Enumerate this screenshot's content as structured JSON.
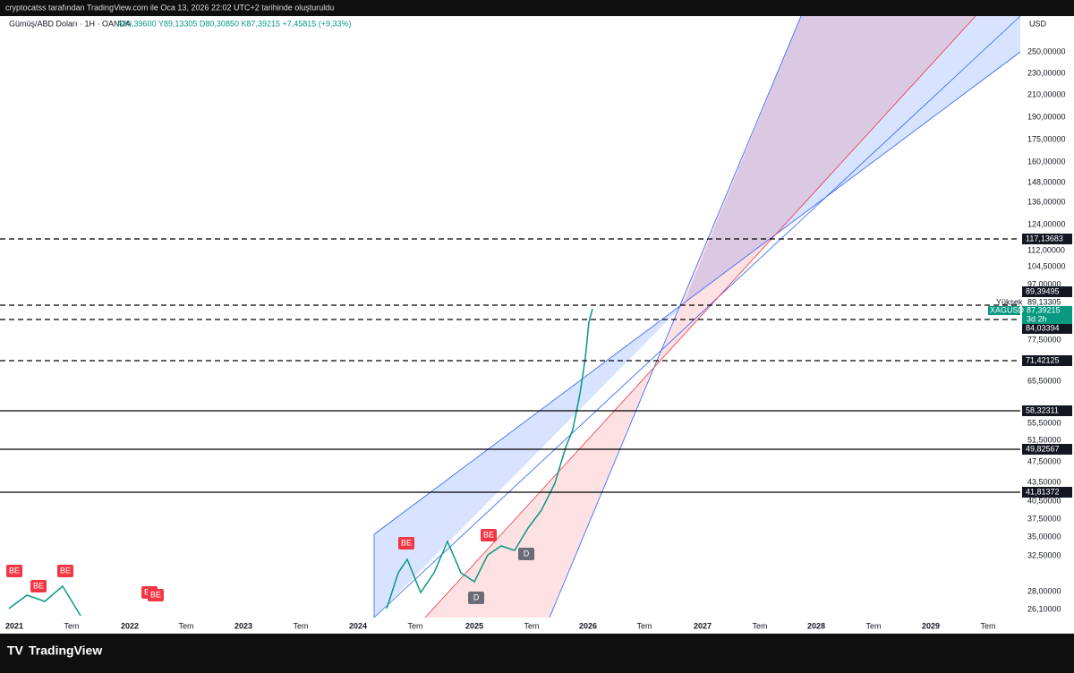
{
  "header": {
    "credit": "cryptocatss tarafından TradingView.com ile Oca 13, 2026 22:02 UTC+2 tarihinde oluşturuldu",
    "symbol": "Gümüş/ABD Doları · 1H · OANDA",
    "ohlc": "A80,39600 Y89,13305 D80,30850 K87,39215 +7,45815 (+9,33%)",
    "currency": "USD"
  },
  "price_axis": [
    "250,00000",
    "230,00000",
    "210,00000",
    "190,00000",
    "175,00000",
    "160,00000",
    "148,00000",
    "136,00000",
    "124,00000",
    "112,00000",
    "104,50000",
    "97,00000",
    "77,50000",
    "65,50000",
    "55,50000",
    "51,50000",
    "47,50000",
    "43,50000",
    "40,50000",
    "37,50000",
    "35,00000",
    "32,50000",
    "28,00000",
    "26,10000"
  ],
  "levels": [
    "117,13683",
    "89,39495",
    "84,03394",
    "71,42125",
    "58,32311",
    "49,82567",
    "41,81372"
  ],
  "high": {
    "label": "Yüksek",
    "value": "89,13305"
  },
  "last": {
    "symbol": "XAGUSD",
    "price": "87,39215",
    "countdown": "3d 2h"
  },
  "time_axis": [
    "2021",
    "Tem",
    "2022",
    "Tem",
    "2023",
    "Tem",
    "2024",
    "Tem",
    "2025",
    "Tem",
    "2026",
    "Tem",
    "2027",
    "Tem",
    "2028",
    "Tem",
    "2029",
    "Tem"
  ],
  "markers": [
    "BE",
    "BE",
    "BE",
    "BE",
    "BE",
    "BE",
    "BE",
    "D",
    "D"
  ],
  "brand": "TradingView"
}
